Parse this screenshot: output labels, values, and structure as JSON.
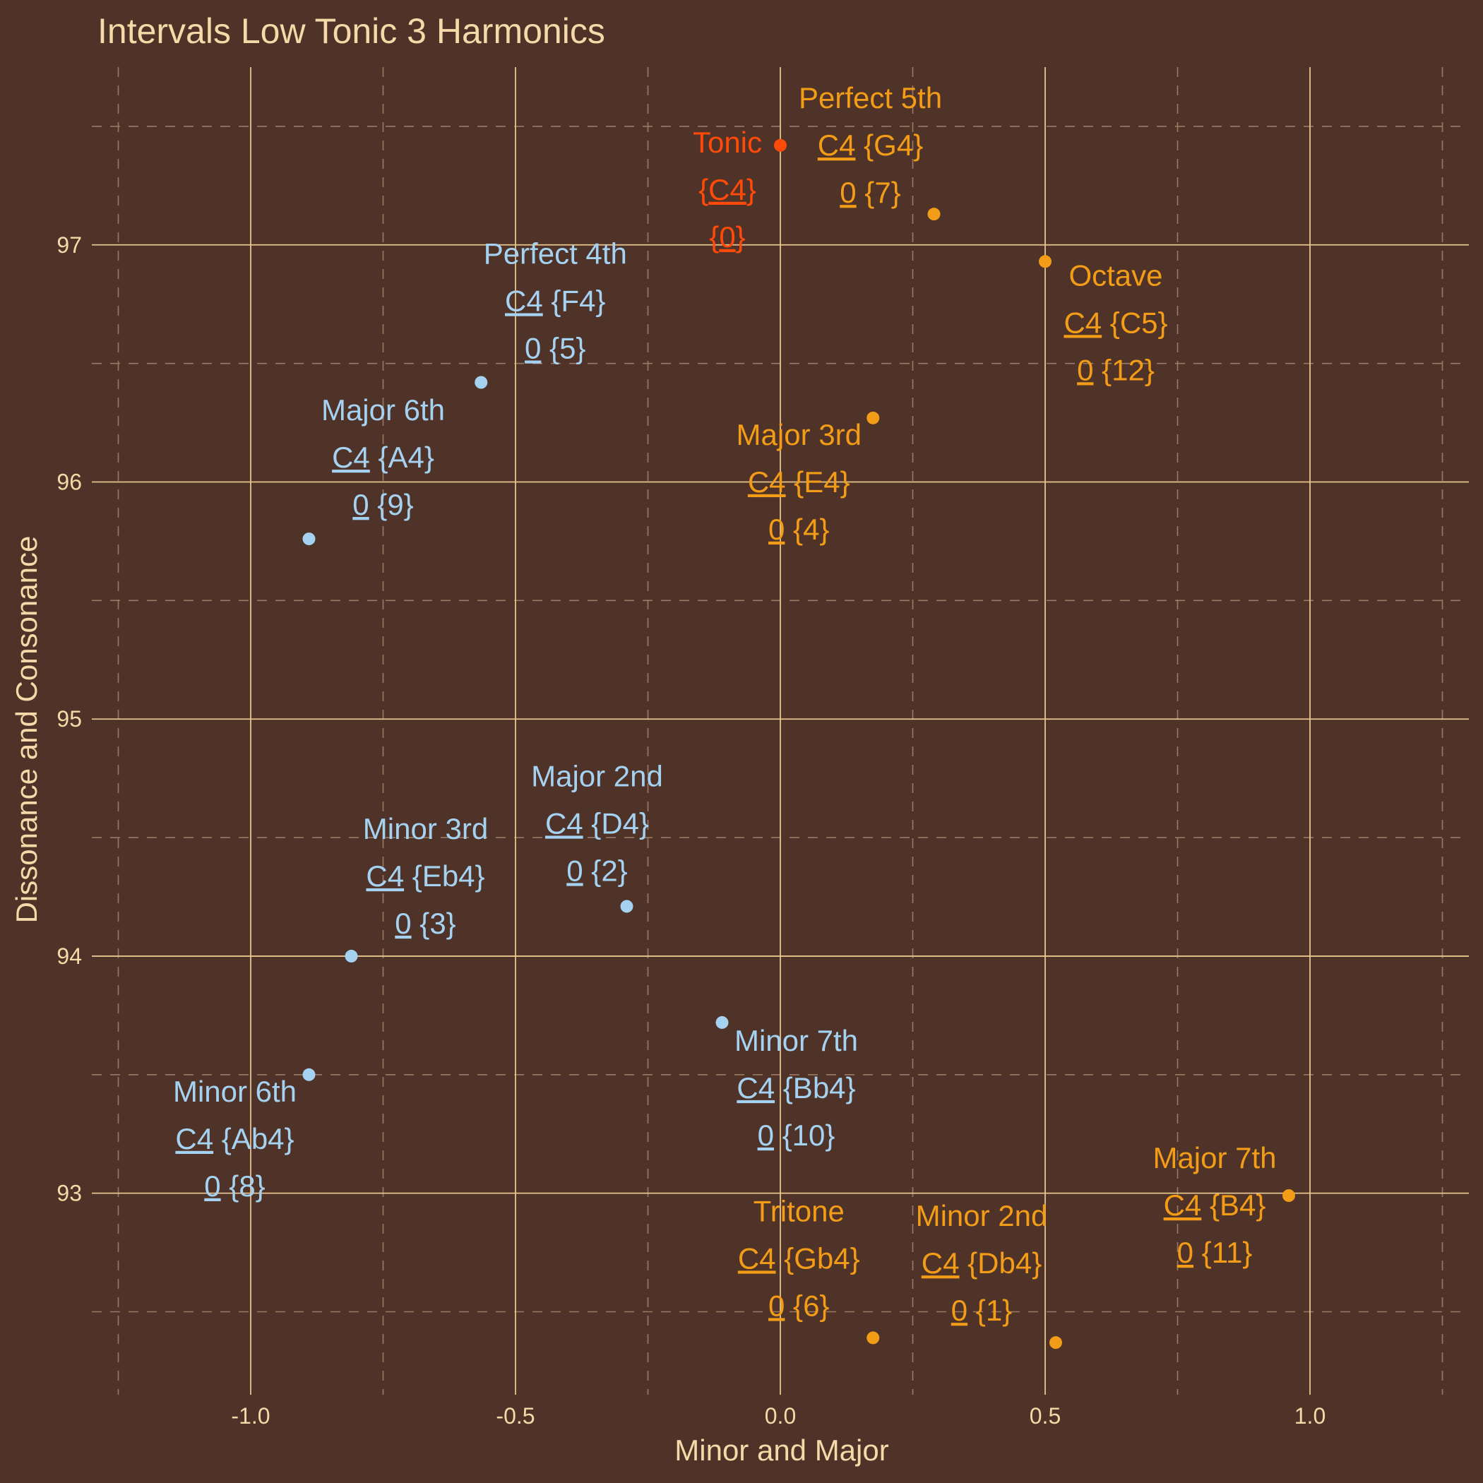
{
  "colors": {
    "background": "#4f3328",
    "text": "#f5d9a8",
    "grid_major": "#e6c58f",
    "grid_minor": "#9a7a62",
    "minor_series": "#a6d2f2",
    "major_series": "#f29c18",
    "tonic": "#ff4a0a"
  },
  "chart_data": {
    "type": "scatter",
    "title": "Intervals Low Tonic 3 Harmonics",
    "xlabel": "Minor and Major",
    "ylabel": "Dissonance and Consonance",
    "xlim": [
      -1.3,
      1.3
    ],
    "ylim": [
      92.15,
      97.75
    ],
    "x_ticks": [
      -1.0,
      -0.5,
      0.0,
      0.5,
      1.0
    ],
    "x_tick_labels": [
      "-1.0",
      "-0.5",
      "0.0",
      "0.5",
      "1.0"
    ],
    "y_ticks": [
      93,
      94,
      95,
      96,
      97
    ],
    "y_tick_labels": [
      "93",
      "94",
      "95",
      "96",
      "97"
    ],
    "grid": true,
    "legend": "none",
    "points": [
      {
        "name": "Tonic",
        "x": 0.0,
        "y": 97.42,
        "group": "tonic",
        "line2": "{C4}",
        "line3": "{0}"
      },
      {
        "name": "Minor 2nd",
        "x": 0.52,
        "y": 92.37,
        "group": "major",
        "line2": "C4 {Db4}",
        "line3": "0 {1}"
      },
      {
        "name": "Major 2nd",
        "x": -0.29,
        "y": 94.21,
        "group": "minor",
        "line2": "C4 {D4}",
        "line3": "0 {2}"
      },
      {
        "name": "Minor 3rd",
        "x": -0.81,
        "y": 94.0,
        "group": "minor",
        "line2": "C4 {Eb4}",
        "line3": "0 {3}"
      },
      {
        "name": "Major 3rd",
        "x": 0.175,
        "y": 96.27,
        "group": "major",
        "line2": "C4 {E4}",
        "line3": "0 {4}"
      },
      {
        "name": "Perfect 4th",
        "x": -0.565,
        "y": 96.42,
        "group": "minor",
        "line2": "C4 {F4}",
        "line3": "0 {5}"
      },
      {
        "name": "Tritone",
        "x": 0.175,
        "y": 92.39,
        "group": "major",
        "line2": "C4 {Gb4}",
        "line3": "0 {6}"
      },
      {
        "name": "Perfect 5th",
        "x": 0.29,
        "y": 97.13,
        "group": "major",
        "line2": "C4 {G4}",
        "line3": "0 {7}"
      },
      {
        "name": "Minor 6th",
        "x": -0.89,
        "y": 93.5,
        "group": "minor",
        "line2": "C4 {Ab4}",
        "line3": "0 {8}"
      },
      {
        "name": "Major 6th",
        "x": -0.89,
        "y": 95.76,
        "group": "minor",
        "line2": "C4 {A4}",
        "line3": "0 {9}"
      },
      {
        "name": "Minor 7th",
        "x": -0.11,
        "y": 93.72,
        "group": "minor",
        "line2": "C4 {Bb4}",
        "line3": "0 {10}"
      },
      {
        "name": "Major 7th",
        "x": 0.96,
        "y": 92.99,
        "group": "major",
        "line2": "C4 {B4}",
        "line3": "0 {11}"
      },
      {
        "name": "Octave",
        "x": 0.5,
        "y": 96.93,
        "group": "major",
        "line2": "C4 {C5}",
        "line3": "0 {12}"
      }
    ]
  }
}
